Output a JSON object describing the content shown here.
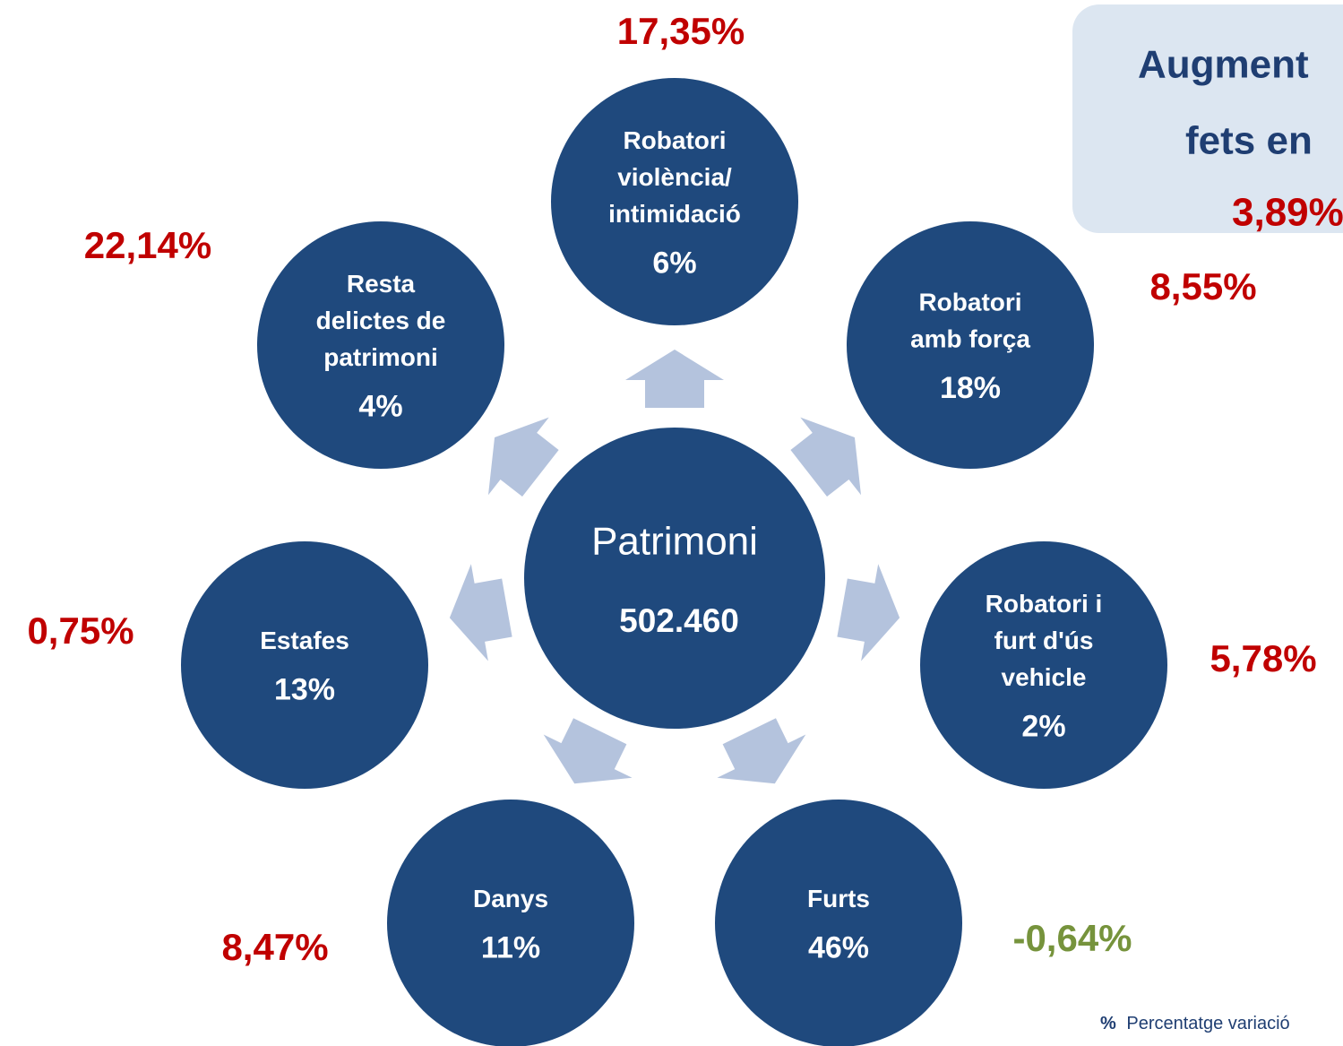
{
  "center": {
    "title": "Patrimoni",
    "value": "502.460"
  },
  "nodes": [
    {
      "label": [
        "Robatori",
        "violència/",
        "intimidació"
      ],
      "share": "6%",
      "change": "17,35%",
      "change_color": "#c00000"
    },
    {
      "label": [
        "Robatori",
        "amb força"
      ],
      "share": "18%",
      "change": "8,55%",
      "change_color": "#c00000"
    },
    {
      "label": [
        "Robatori i",
        "furt d'ús",
        "vehicle"
      ],
      "share": "2%",
      "change": "5,78%",
      "change_color": "#c00000"
    },
    {
      "label": [
        "Furts"
      ],
      "share": "46%",
      "change": "-0,64%",
      "change_color": "#76933c"
    },
    {
      "label": [
        "Danys"
      ],
      "share": "11%",
      "change": "8,47%",
      "change_color": "#c00000"
    },
    {
      "label": [
        "Estafes"
      ],
      "share": "13%",
      "change": "0,75%",
      "change_color": "#c00000"
    },
    {
      "label": [
        "Resta",
        "delictes de",
        "patrimoni"
      ],
      "share": "4%",
      "change": "22,14%",
      "change_color": "#c00000"
    }
  ],
  "summary": {
    "lines": [
      "Augment",
      "fets en"
    ],
    "value": "3,89%"
  },
  "footnote": {
    "symbol": "%",
    "text": "Percentatge variació"
  }
}
